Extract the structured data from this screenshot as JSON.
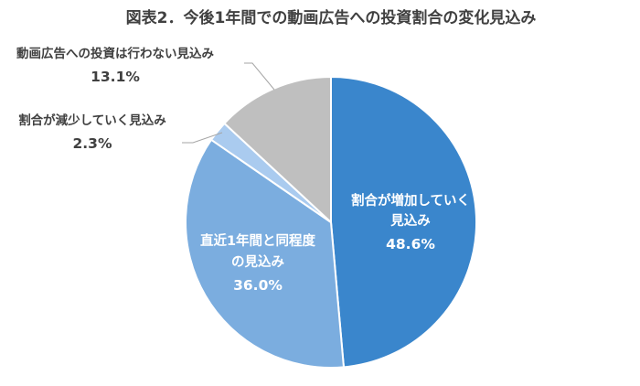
{
  "chart_data": {
    "type": "pie",
    "title": "図表2．今後1年間での動画広告への投資割合の変化見込み",
    "start_angle_deg": 0,
    "direction": "clockwise",
    "slices": [
      {
        "name": "割合が増加していく見込み",
        "label_lines": [
          "割合が増加していく",
          "見込み"
        ],
        "value": 48.6,
        "value_label": "48.6%",
        "color": "#3A86CC",
        "label_position": "inside"
      },
      {
        "name": "直近1年間と同程度の見込み",
        "label_lines": [
          "直近1年間と同程度",
          "の見込み"
        ],
        "value": 36.0,
        "value_label": "36.0%",
        "color": "#7BADDF",
        "label_position": "inside"
      },
      {
        "name": "割合が減少していく見込み",
        "label_lines": [
          "割合が減少していく見込み"
        ],
        "value": 2.3,
        "value_label": "2.3%",
        "color": "#AACBEF",
        "label_position": "outside"
      },
      {
        "name": "動画広告への投資は行わない見込み",
        "label_lines": [
          "動画広告への投資は行わない見込み"
        ],
        "value": 13.1,
        "value_label": "13.1%",
        "color": "#BFBFBF",
        "label_position": "outside"
      }
    ],
    "legend": "none",
    "leader_line_color": "#A6A6A6"
  }
}
